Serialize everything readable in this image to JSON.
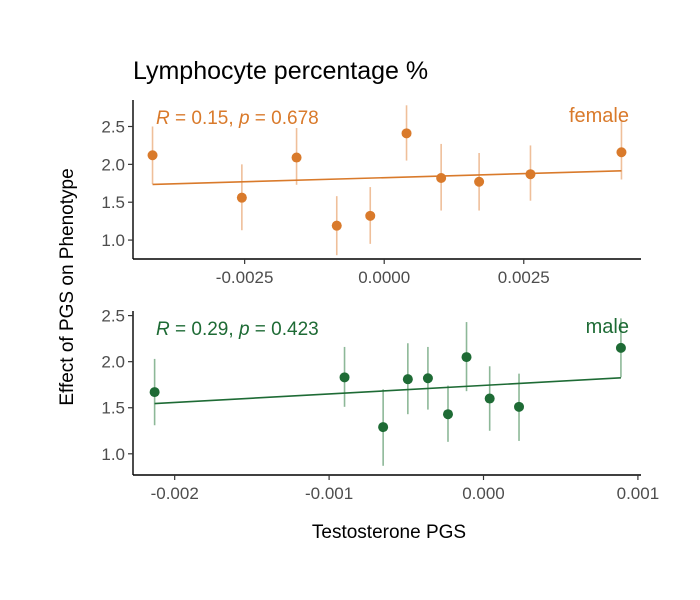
{
  "chart_data": {
    "type": "scatter",
    "title": "Lymphocyte percentage %",
    "xlabel": "Testosterone PGS",
    "ylabel": "Effect of PGS on Phenotype",
    "panels": [
      {
        "label": "female",
        "color": "#D97A2B",
        "errorbar_color": "#EFBF9A",
        "annotation": {
          "r_label": "R",
          "r_value": " = 0.15, ",
          "p_label": "p",
          "p_value": " = 0.678"
        },
        "xlim": [
          -0.0045,
          0.0046
        ],
        "ylim": [
          0.75,
          2.85
        ],
        "xticks": [
          -0.0025,
          0.0,
          0.0025
        ],
        "xtick_labels": [
          "-0.0025",
          "0.0000",
          "0.0025"
        ],
        "yticks": [
          1.0,
          1.5,
          2.0,
          2.5
        ],
        "ytick_labels": [
          "1.0",
          "1.5",
          "2.0",
          "2.5"
        ],
        "points": [
          {
            "x": -0.00415,
            "y": 2.12,
            "lo": 1.74,
            "hi": 2.5
          },
          {
            "x": -0.00255,
            "y": 1.56,
            "lo": 1.13,
            "hi": 2.0
          },
          {
            "x": -0.00157,
            "y": 2.09,
            "lo": 1.73,
            "hi": 2.48
          },
          {
            "x": -0.00085,
            "y": 1.19,
            "lo": 0.8,
            "hi": 1.58
          },
          {
            "x": -0.00025,
            "y": 1.32,
            "lo": 0.95,
            "hi": 1.7
          },
          {
            "x": 0.0004,
            "y": 2.41,
            "lo": 2.05,
            "hi": 2.78
          },
          {
            "x": 0.00102,
            "y": 1.82,
            "lo": 1.39,
            "hi": 2.27
          },
          {
            "x": 0.0017,
            "y": 1.77,
            "lo": 1.39,
            "hi": 2.15
          },
          {
            "x": 0.00262,
            "y": 1.87,
            "lo": 1.52,
            "hi": 2.25
          },
          {
            "x": 0.00425,
            "y": 2.16,
            "lo": 1.8,
            "hi": 2.57
          }
        ],
        "fit": {
          "x": [
            -0.00415,
            0.00425
          ],
          "y": [
            1.735,
            1.915
          ]
        }
      },
      {
        "label": "male",
        "color": "#1E6B35",
        "errorbar_color": "#8DB898",
        "annotation": {
          "r_label": "R",
          "r_value": " = 0.29, ",
          "p_label": "p",
          "p_value": " = 0.423"
        },
        "xlim": [
          -0.00227,
          0.00102
        ],
        "ylim": [
          0.77,
          2.55
        ],
        "xticks": [
          -0.002,
          -0.001,
          0.0,
          0.001
        ],
        "xtick_labels": [
          "-0.002",
          "-0.001",
          "0.000",
          "0.001"
        ],
        "yticks": [
          1.0,
          1.5,
          2.0,
          2.5
        ],
        "ytick_labels": [
          "1.0",
          "1.5",
          "2.0",
          "2.5"
        ],
        "points": [
          {
            "x": -0.00213,
            "y": 1.67,
            "lo": 1.31,
            "hi": 2.03
          },
          {
            "x": -0.0009,
            "y": 1.83,
            "lo": 1.51,
            "hi": 2.16
          },
          {
            "x": -0.00065,
            "y": 1.29,
            "lo": 0.87,
            "hi": 1.7
          },
          {
            "x": -0.00049,
            "y": 1.81,
            "lo": 1.43,
            "hi": 2.2
          },
          {
            "x": -0.00036,
            "y": 1.82,
            "lo": 1.48,
            "hi": 2.16
          },
          {
            "x": -0.00023,
            "y": 1.43,
            "lo": 1.13,
            "hi": 1.74
          },
          {
            "x": -0.00011,
            "y": 2.05,
            "lo": 1.68,
            "hi": 2.43
          },
          {
            "x": 4e-05,
            "y": 1.6,
            "lo": 1.25,
            "hi": 1.95
          },
          {
            "x": 0.00023,
            "y": 1.51,
            "lo": 1.14,
            "hi": 1.87
          },
          {
            "x": 0.00089,
            "y": 2.15,
            "lo": 1.83,
            "hi": 2.47
          }
        ],
        "fit": {
          "x": [
            -0.00213,
            0.00089
          ],
          "y": [
            1.545,
            1.825
          ]
        }
      }
    ],
    "grid": false,
    "legend": "none"
  }
}
